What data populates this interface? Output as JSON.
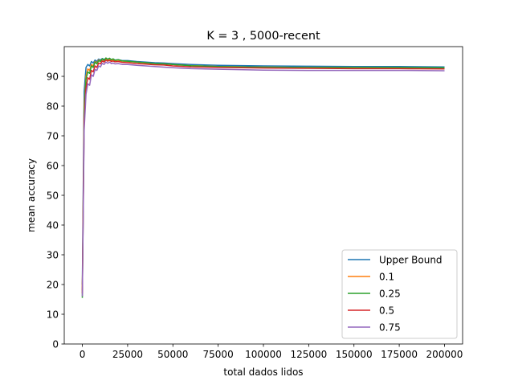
{
  "chart_data": {
    "type": "line",
    "title": "K = 3 , 5000-recent",
    "xlabel": "total dados lidos",
    "ylabel": "mean accuracy",
    "xlim": [
      -10000,
      210000
    ],
    "ylim": [
      0,
      100
    ],
    "xticks": [
      0,
      25000,
      50000,
      75000,
      100000,
      125000,
      150000,
      175000,
      200000
    ],
    "yticks": [
      0,
      10,
      20,
      30,
      40,
      50,
      60,
      70,
      80,
      90
    ],
    "legend_position": "lower-right",
    "series": [
      {
        "name": "Upper Bound",
        "color": "#1f77b4",
        "x": [
          0,
          1000,
          2000,
          3000,
          4000,
          5000,
          6000,
          7000,
          8000,
          9000,
          10000,
          11000,
          12000,
          13000,
          14000,
          15000,
          16000,
          17000,
          18000,
          20000,
          22000,
          25000,
          30000,
          35000,
          40000,
          45000,
          50000,
          60000,
          75000,
          100000,
          125000,
          150000,
          175000,
          200000
        ],
        "y": [
          20,
          85,
          93,
          94,
          93.5,
          95,
          94.5,
          95.5,
          95,
          95.8,
          95.5,
          96,
          95.7,
          96,
          95.8,
          96,
          95.6,
          95.8,
          95.5,
          95.6,
          95.3,
          95.3,
          95,
          94.8,
          94.6,
          94.5,
          94.3,
          94,
          93.7,
          93.5,
          93.4,
          93.3,
          93.3,
          93.2
        ]
      },
      {
        "name": "0.1",
        "color": "#ff7f0e",
        "x": [
          0,
          1000,
          2000,
          3000,
          4000,
          5000,
          6000,
          7000,
          8000,
          9000,
          10000,
          11000,
          12000,
          13000,
          14000,
          15000,
          16000,
          17000,
          18000,
          20000,
          22000,
          25000,
          30000,
          35000,
          40000,
          45000,
          50000,
          60000,
          75000,
          100000,
          125000,
          150000,
          175000,
          200000
        ],
        "y": [
          18,
          80,
          90,
          92.5,
          92,
          94,
          93.5,
          95,
          94.5,
          95.5,
          95,
          95.8,
          95.3,
          96,
          95.5,
          95.9,
          95.4,
          95.6,
          95.3,
          95.4,
          95.1,
          95,
          94.8,
          94.5,
          94.3,
          94.2,
          94,
          93.6,
          93.3,
          93.1,
          93,
          93,
          92.9,
          92.9
        ]
      },
      {
        "name": "0.25",
        "color": "#2ca02c",
        "x": [
          0,
          1000,
          2000,
          3000,
          4000,
          5000,
          6000,
          7000,
          8000,
          9000,
          10000,
          11000,
          12000,
          13000,
          14000,
          15000,
          16000,
          17000,
          18000,
          20000,
          22000,
          25000,
          30000,
          35000,
          40000,
          45000,
          50000,
          60000,
          75000,
          100000,
          125000,
          150000,
          175000,
          200000
        ],
        "y": [
          15.5,
          78,
          89,
          91.5,
          91,
          93.5,
          93,
          94.8,
          94.2,
          95.3,
          95,
          95.9,
          95.4,
          96.2,
          95.7,
          96.1,
          95.6,
          95.9,
          95.4,
          95.6,
          95.2,
          95.1,
          94.8,
          94.6,
          94.3,
          94.2,
          94,
          93.6,
          93.3,
          93.1,
          93,
          93,
          93,
          92.9
        ]
      },
      {
        "name": "0.5",
        "color": "#d62728",
        "x": [
          0,
          1000,
          2000,
          3000,
          4000,
          5000,
          6000,
          7000,
          8000,
          9000,
          10000,
          11000,
          12000,
          13000,
          14000,
          15000,
          16000,
          17000,
          18000,
          20000,
          22000,
          25000,
          30000,
          35000,
          40000,
          45000,
          50000,
          60000,
          75000,
          100000,
          125000,
          150000,
          175000,
          200000
        ],
        "y": [
          17,
          75,
          86,
          89.5,
          89,
          92,
          91.5,
          93.5,
          93,
          94.5,
          94.2,
          95.2,
          94.8,
          95.5,
          95.1,
          95.4,
          95,
          95.2,
          94.9,
          95,
          94.7,
          94.6,
          94.3,
          94.1,
          93.9,
          93.8,
          93.5,
          93.2,
          93,
          92.8,
          92.7,
          92.6,
          92.6,
          92.5
        ]
      },
      {
        "name": "0.75",
        "color": "#9467bd",
        "x": [
          0,
          1000,
          2000,
          3000,
          4000,
          5000,
          6000,
          7000,
          8000,
          9000,
          10000,
          11000,
          12000,
          13000,
          14000,
          15000,
          16000,
          17000,
          18000,
          20000,
          22000,
          25000,
          30000,
          35000,
          40000,
          45000,
          50000,
          60000,
          75000,
          100000,
          125000,
          150000,
          175000,
          200000
        ],
        "y": [
          16,
          72,
          84,
          87.5,
          87,
          90.5,
          90,
          92.3,
          92,
          93.5,
          93.2,
          94.4,
          94,
          94.8,
          94.4,
          94.8,
          94.3,
          94.5,
          94.2,
          94.3,
          94,
          94,
          93.7,
          93.5,
          93.3,
          93.1,
          92.9,
          92.6,
          92.4,
          92.1,
          92,
          92,
          92,
          91.9
        ]
      }
    ]
  }
}
